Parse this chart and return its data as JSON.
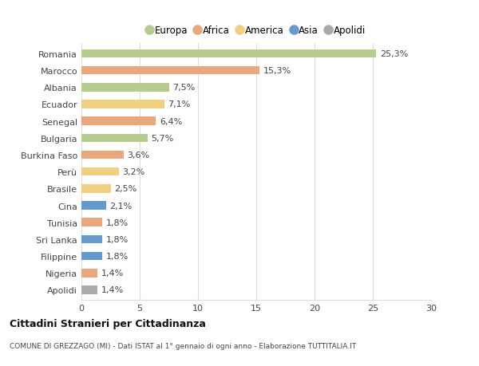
{
  "categories": [
    "Romania",
    "Marocco",
    "Albania",
    "Ecuador",
    "Senegal",
    "Bulgaria",
    "Burkina Faso",
    "Perù",
    "Brasile",
    "Cina",
    "Tunisia",
    "Sri Lanka",
    "Filippine",
    "Nigeria",
    "Apolidi"
  ],
  "values": [
    25.3,
    15.3,
    7.5,
    7.1,
    6.4,
    5.7,
    3.6,
    3.2,
    2.5,
    2.1,
    1.8,
    1.8,
    1.8,
    1.4,
    1.4
  ],
  "labels": [
    "25,3%",
    "15,3%",
    "7,5%",
    "7,1%",
    "6,4%",
    "5,7%",
    "3,6%",
    "3,2%",
    "2,5%",
    "2,1%",
    "1,8%",
    "1,8%",
    "1,8%",
    "1,4%",
    "1,4%"
  ],
  "colors": [
    "#b5cc8e",
    "#e8a87c",
    "#b5cc8e",
    "#f0d080",
    "#e8a87c",
    "#b5cc8e",
    "#e8a87c",
    "#f0d080",
    "#f0d080",
    "#6699cc",
    "#e8a87c",
    "#6699cc",
    "#6699cc",
    "#e8a87c",
    "#aaaaaa"
  ],
  "legend": [
    {
      "label": "Europa",
      "color": "#b5cc8e"
    },
    {
      "label": "Africa",
      "color": "#e8a87c"
    },
    {
      "label": "America",
      "color": "#f0d080"
    },
    {
      "label": "Asia",
      "color": "#6699cc"
    },
    {
      "label": "Apolidi",
      "color": "#aaaaaa"
    }
  ],
  "xlim": [
    0,
    30
  ],
  "xticks": [
    0,
    5,
    10,
    15,
    20,
    25,
    30
  ],
  "title": "Cittadini Stranieri per Cittadinanza",
  "subtitle": "COMUNE DI GREZZAGO (MI) - Dati ISTAT al 1° gennaio di ogni anno - Elaborazione TUTTITALIA.IT",
  "background_color": "#ffffff",
  "grid_color": "#dddddd",
  "bar_height": 0.5,
  "label_fontsize": 8,
  "tick_fontsize": 8,
  "legend_fontsize": 8.5
}
